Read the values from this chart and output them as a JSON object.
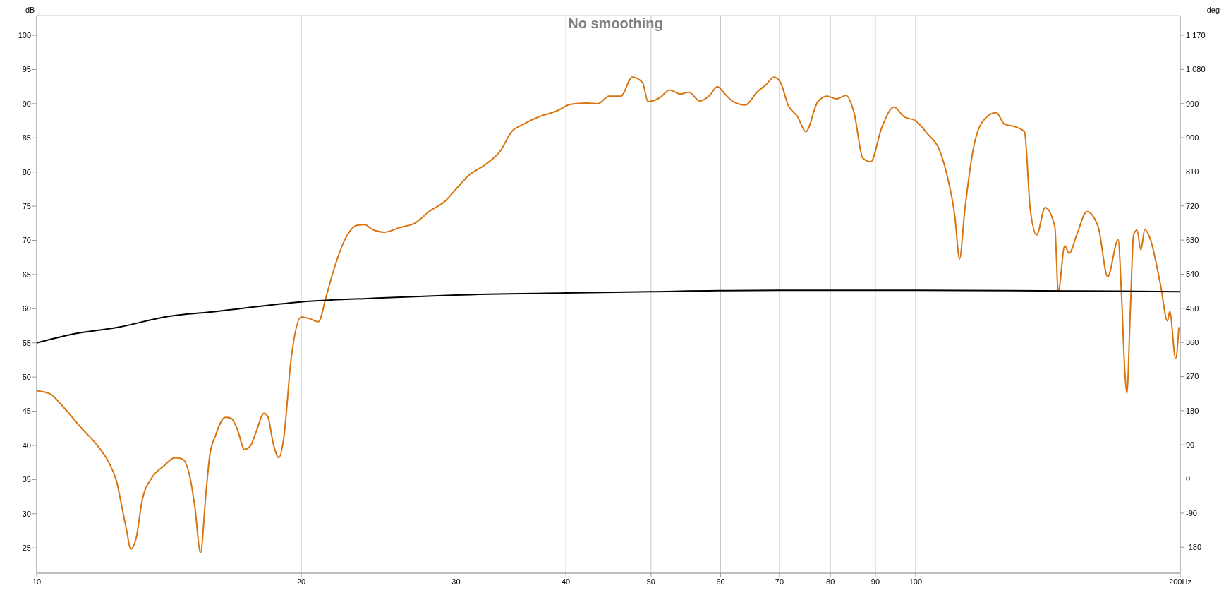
{
  "chart_data": {
    "type": "line",
    "title": "No smoothing",
    "ylabel": "dB",
    "y2label": "deg",
    "log": "x",
    "grid": true,
    "xlim": [
      10,
      200
    ],
    "xticks": [
      10,
      20,
      30,
      40,
      50,
      60,
      70,
      80,
      90,
      100,
      {
        "value": 200,
        "label": "200Hz"
      }
    ],
    "ylim": [
      21.3,
      102.9
    ],
    "yticks": [
      25,
      30,
      35,
      40,
      45,
      50,
      55,
      60,
      65,
      70,
      75,
      80,
      85,
      90,
      95,
      100
    ],
    "y2lim": [
      -248.4,
      1222.2
    ],
    "y2ticks": [
      -180,
      -90,
      0,
      90,
      180,
      270,
      360,
      450,
      540,
      630,
      720,
      810,
      900,
      990,
      {
        "value": 1080,
        "label": "1.080"
      },
      {
        "value": 1170,
        "label": "1.170"
      }
    ],
    "series": [
      {
        "color": "#d9730d",
        "x": [
          10,
          10.37,
          10.69,
          11.25,
          11.72,
          12.08,
          12.33,
          12.51,
          12.66,
          12.79,
          12.97,
          13.18,
          13.51,
          13.93,
          14.36,
          14.65,
          14.96,
          15.14,
          15.36,
          15.58,
          15.74,
          15.97,
          16.39,
          16.63,
          16.9,
          17.24,
          17.52,
          17.77,
          18.14,
          18.32,
          18.59,
          18.86,
          19.09,
          19.49,
          20.0,
          20.38,
          20.92,
          21.36,
          21.79,
          22.46,
          23.14,
          23.61,
          24.1,
          24.87,
          25.92,
          26.91,
          28.08,
          29.07,
          30.0,
          31.0,
          32.4,
          33.7,
          34.7,
          35.8,
          37.3,
          39.0,
          40.5,
          42.2,
          43.5,
          44.8,
          46.2,
          47.6,
          48.9,
          49.6,
          51.2,
          52.5,
          54.0,
          55.2,
          56.8,
          58.3,
          59.5,
          60.7,
          62.0,
          64.0,
          66.0,
          67.6,
          69.0,
          70.2,
          71.6,
          73.4,
          75.0,
          77.4,
          79.3,
          81.3,
          83.3,
          85.1,
          87.1,
          88.9,
          91.5,
          94.5,
          97.0,
          100,
          103.3,
          106.3,
          108.5,
          110.8,
          112.2,
          113.7,
          116.4,
          119.9,
          123.5,
          126.2,
          130.0,
          133.0,
          135.0,
          137.3,
          140.4,
          144.0,
          145.3,
          147.8,
          149.5,
          152.5,
          156.6,
          161.3,
          165.4,
          170.0,
          171.5,
          173.0,
          173.9,
          175.5,
          177.0,
          178.6,
          180.4,
          182.3,
          184.9,
          190.0,
          193.4,
          194.6,
          197.6,
          199.3
        ],
        "values": [
          48.0,
          47.5,
          45.8,
          42.5,
          40.0,
          37.5,
          34.7,
          30.8,
          27.5,
          24.8,
          26.3,
          31.9,
          35.2,
          36.9,
          38.2,
          38.0,
          35.0,
          30.8,
          24.3,
          33.0,
          38.6,
          41.4,
          44.1,
          44.0,
          42.5,
          39.4,
          40.0,
          42.0,
          44.7,
          44.2,
          40.2,
          38.2,
          40.8,
          53.0,
          58.8,
          58.6,
          58.1,
          61.9,
          65.8,
          70.3,
          72.2,
          72.3,
          71.6,
          71.2,
          71.9,
          72.5,
          74.4,
          75.6,
          77.5,
          79.5,
          81.1,
          83.1,
          85.9,
          87.0,
          88.1,
          88.9,
          89.9,
          90.1,
          90.0,
          91.1,
          91.1,
          93.9,
          93.1,
          90.3,
          90.9,
          92.0,
          91.4,
          91.7,
          90.4,
          91.2,
          92.5,
          91.4,
          90.3,
          89.8,
          91.7,
          92.8,
          93.9,
          93.1,
          89.8,
          88.1,
          85.9,
          90.3,
          91.1,
          90.7,
          91.2,
          88.7,
          82.0,
          81.5,
          86.5,
          89.5,
          88.1,
          87.5,
          85.5,
          83.4,
          79.7,
          73.6,
          67.3,
          74.2,
          83.6,
          87.8,
          88.7,
          87.0,
          86.6,
          85.9,
          74.7,
          70.8,
          74.8,
          72.0,
          62.5,
          69.2,
          68.1,
          70.8,
          74.2,
          72.0,
          64.7,
          70.1,
          61.9,
          50.8,
          47.6,
          59.7,
          70.8,
          71.5,
          68.6,
          71.6,
          70.2,
          63.4,
          58.2,
          59.6,
          52.7,
          57.3
        ]
      },
      {
        "color": "#000000",
        "x": [
          10,
          11,
          12.4,
          14,
          16,
          20,
          25,
          30,
          40,
          50,
          70,
          100,
          150,
          200
        ],
        "values": [
          55.0,
          56.3,
          57.3,
          58.8,
          59.6,
          61.0,
          61.6,
          62.0,
          62.3,
          62.5,
          62.7,
          62.7,
          62.6,
          62.5
        ]
      }
    ]
  }
}
